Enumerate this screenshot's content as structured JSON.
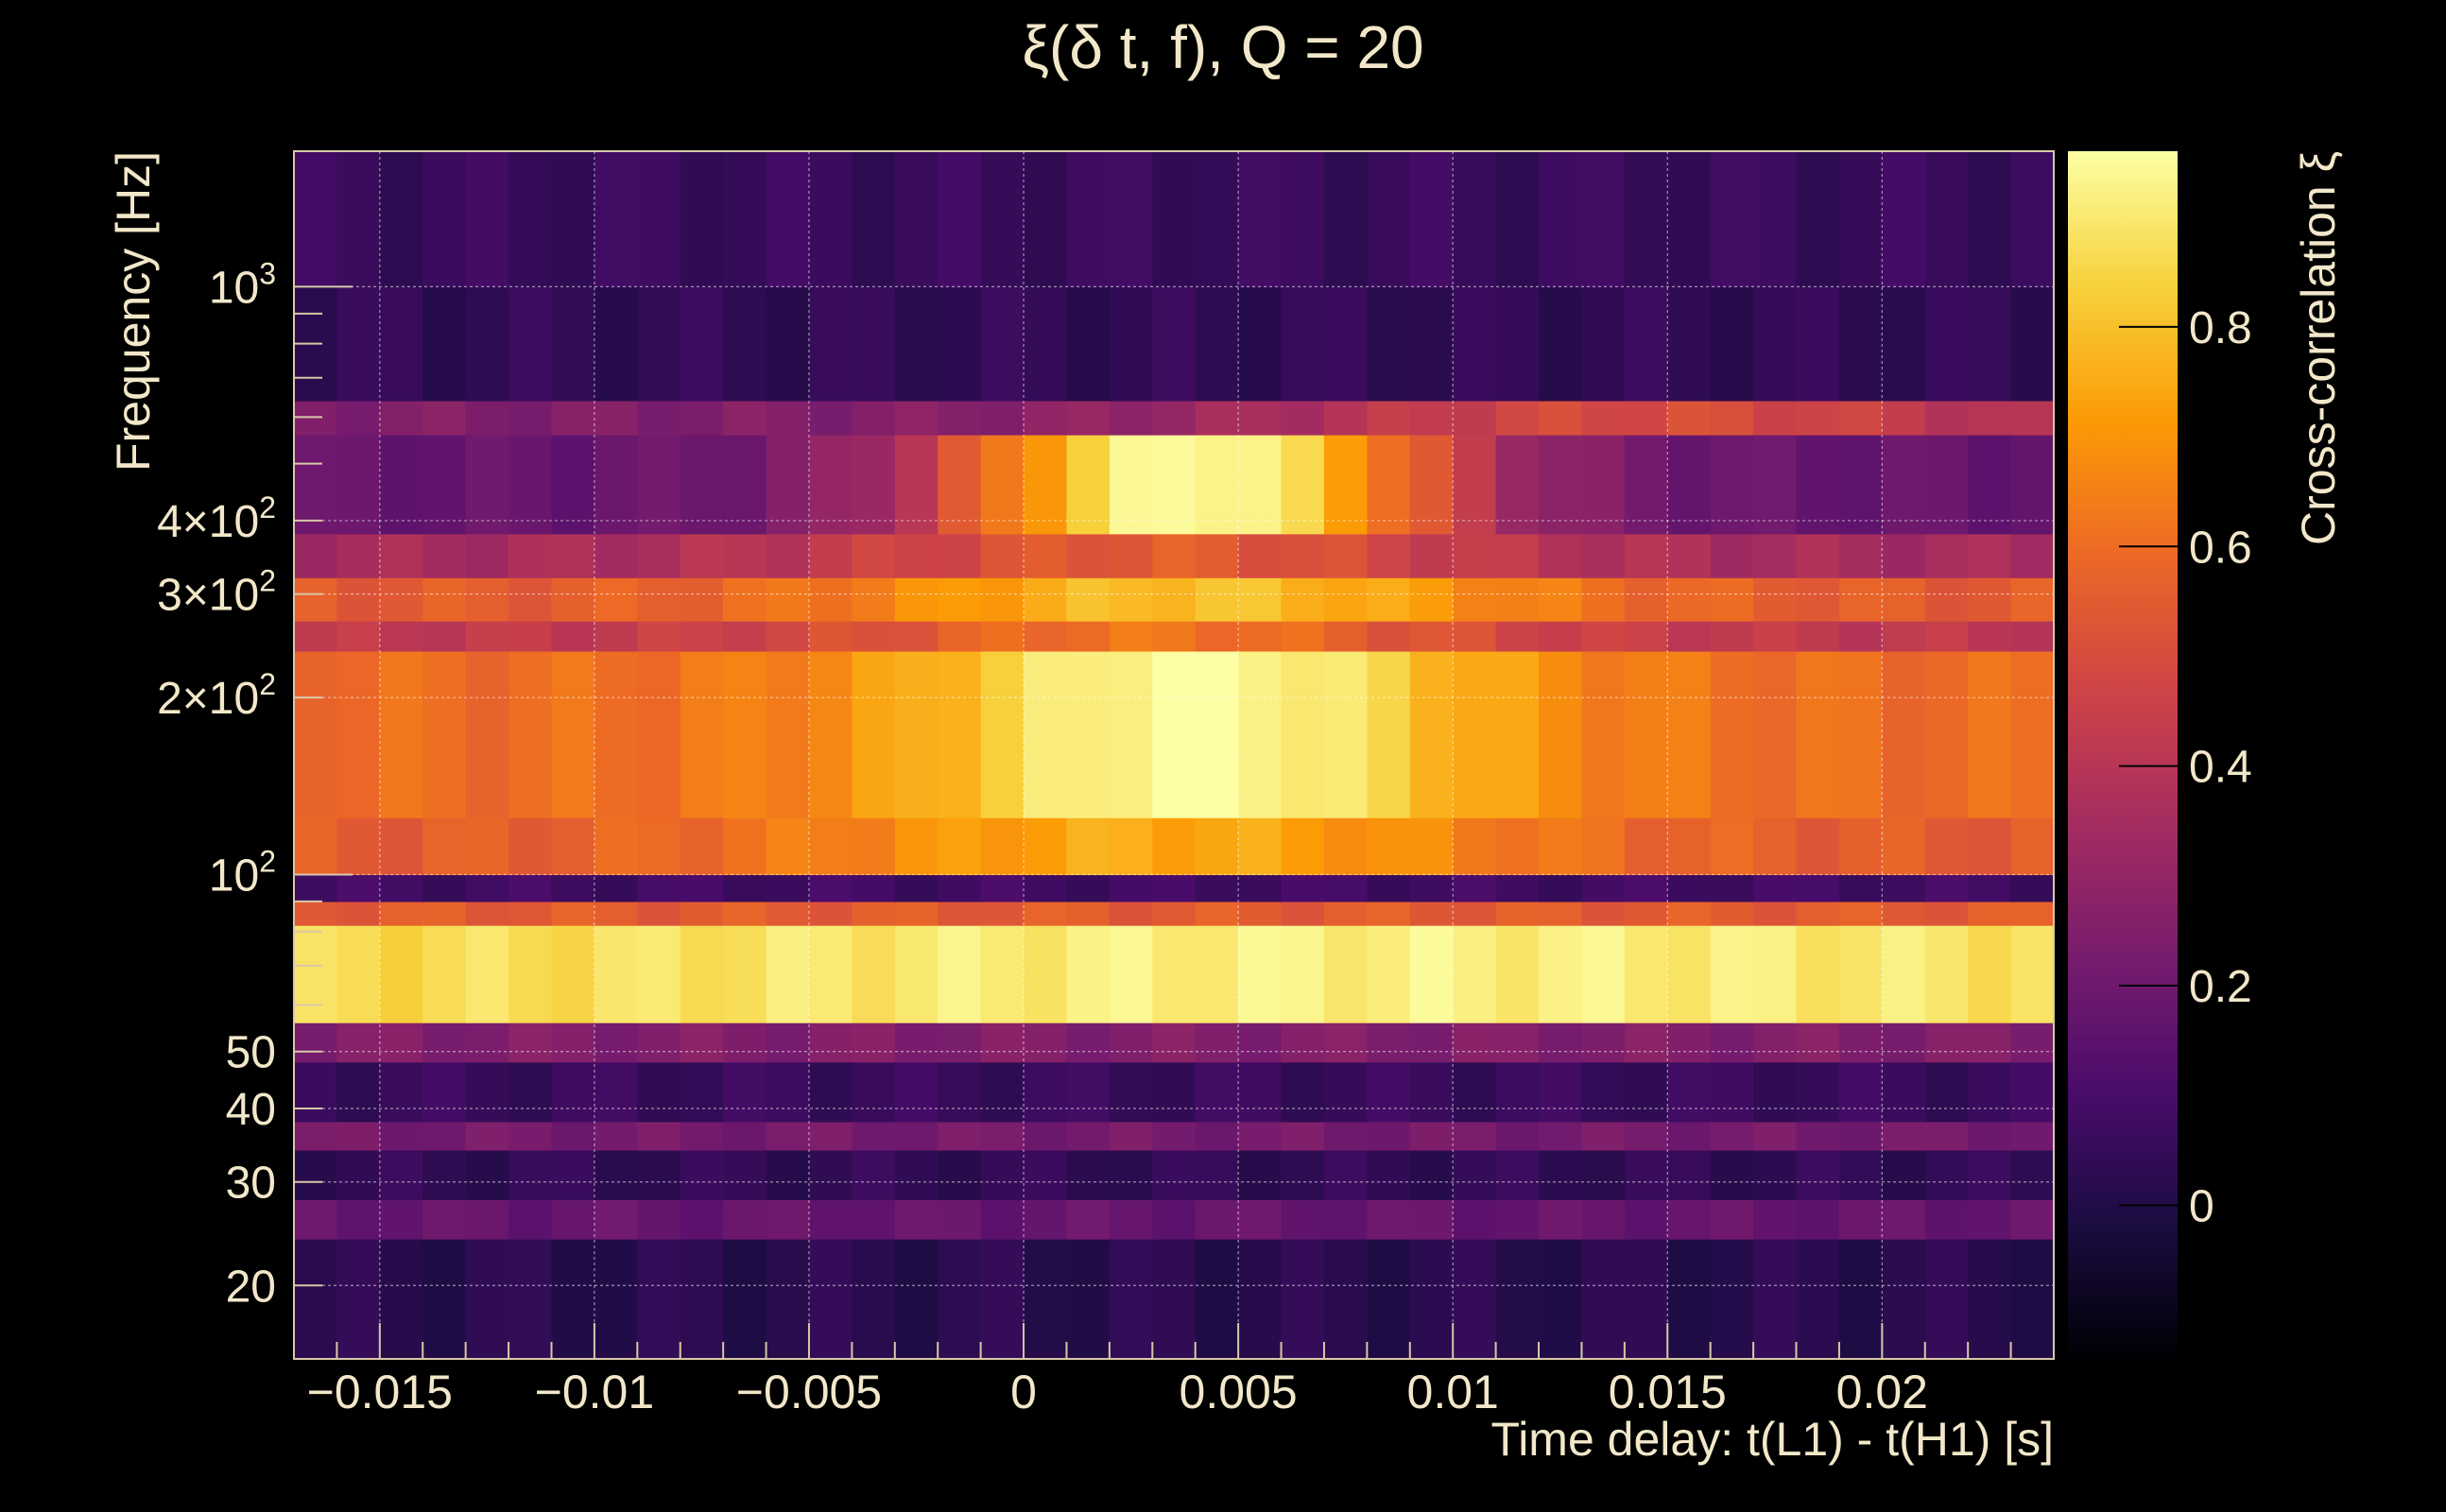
{
  "chart_data": {
    "type": "heatmap",
    "title": "ξ(δ t, f), Q = 20",
    "xlabel": "Time delay: t(L1) - t(H1) [s]",
    "ylabel": "Frequency [Hz]",
    "colorbar_label": "Cross-correlation ξ",
    "xlim": [
      -0.017,
      0.024
    ],
    "ylim": [
      15,
      1700
    ],
    "yscale": "log",
    "clim": [
      -0.14,
      0.96
    ],
    "grid": true,
    "x_ticks": [
      {
        "value": -0.015,
        "label": "−0.015"
      },
      {
        "value": -0.01,
        "label": "−0.01"
      },
      {
        "value": -0.005,
        "label": "−0.005"
      },
      {
        "value": 0,
        "label": "0"
      },
      {
        "value": 0.005,
        "label": "0.005"
      },
      {
        "value": 0.01,
        "label": "0.01"
      },
      {
        "value": 0.015,
        "label": "0.015"
      },
      {
        "value": 0.02,
        "label": "0.02"
      }
    ],
    "y_ticks": [
      {
        "value": 20,
        "label": "20",
        "sup": ""
      },
      {
        "value": 30,
        "label": "30",
        "sup": ""
      },
      {
        "value": 40,
        "label": "40",
        "sup": ""
      },
      {
        "value": 50,
        "label": "50",
        "sup": ""
      },
      {
        "value": 100,
        "label": "10",
        "sup": "2"
      },
      {
        "value": 200,
        "label": "2×10",
        "sup": "2"
      },
      {
        "value": 300,
        "label": "3×10",
        "sup": "2"
      },
      {
        "value": 400,
        "label": "4×10",
        "sup": "2"
      },
      {
        "value": 1000,
        "label": "10",
        "sup": "3"
      }
    ],
    "colorbar_ticks": [
      {
        "value": 0,
        "label": "0"
      },
      {
        "value": 0.2,
        "label": "0.2"
      },
      {
        "value": 0.4,
        "label": "0.4"
      },
      {
        "value": 0.6,
        "label": "0.6"
      },
      {
        "value": 0.8,
        "label": "0.8"
      }
    ],
    "colormap": [
      "#000004",
      "#1b0c41",
      "#4a0c6b",
      "#781c6d",
      "#a52c60",
      "#cf4446",
      "#ed6925",
      "#fb9b06",
      "#f7d13d",
      "#fcffa4"
    ],
    "cell_width": 0.001,
    "bands": [
      {
        "f_min": 15,
        "f_max": 24,
        "value": 0.02
      },
      {
        "f_min": 24,
        "f_max": 28,
        "value": 0.18
      },
      {
        "f_min": 28,
        "f_max": 34,
        "value": 0.04
      },
      {
        "f_min": 34,
        "f_max": 38,
        "value": 0.22
      },
      {
        "f_min": 38,
        "f_max": 48,
        "value": 0.06
      },
      {
        "f_min": 48,
        "f_max": 56,
        "value": 0.25
      },
      {
        "f_min": 56,
        "f_max": 82,
        "value": 0.84,
        "peak_t": 0.008,
        "peak_gain": 0.08,
        "width": 0.02
      },
      {
        "f_min": 82,
        "f_max": 90,
        "value": 0.55
      },
      {
        "f_min": 90,
        "f_max": 100,
        "value": 0.08
      },
      {
        "f_min": 100,
        "f_max": 125,
        "value": 0.55,
        "peak_t": 0.003,
        "peak_gain": 0.2,
        "width": 0.009
      },
      {
        "f_min": 125,
        "f_max": 240,
        "value": 0.6,
        "peak_t": 0.004,
        "peak_gain": 0.36,
        "width": 0.007
      },
      {
        "f_min": 240,
        "f_max": 270,
        "value": 0.42,
        "peak_t": 0.003,
        "peak_gain": 0.2,
        "width": 0.008
      },
      {
        "f_min": 270,
        "f_max": 320,
        "value": 0.55,
        "peak_t": 0.004,
        "peak_gain": 0.25,
        "width": 0.008
      },
      {
        "f_min": 320,
        "f_max": 380,
        "value": 0.35,
        "peak_t": 0.003,
        "peak_gain": 0.2,
        "width": 0.008
      },
      {
        "f_min": 380,
        "f_max": 560,
        "value": 0.18,
        "peak_t": 0.004,
        "peak_gain": 0.78,
        "width": 0.006
      },
      {
        "f_min": 560,
        "f_max": 640,
        "value": 0.25,
        "peak_t": 0.015,
        "peak_gain": 0.25,
        "width": 0.01
      },
      {
        "f_min": 640,
        "f_max": 1000,
        "value": 0.04
      },
      {
        "f_min": 1000,
        "f_max": 1700,
        "value": 0.06
      }
    ]
  }
}
